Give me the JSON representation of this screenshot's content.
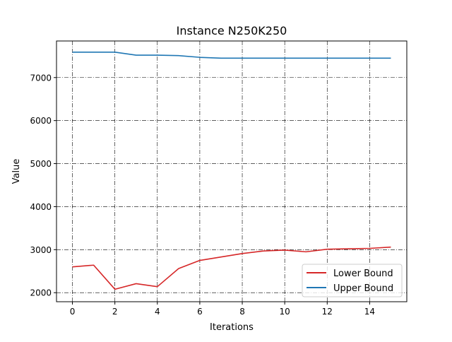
{
  "chart_data": {
    "type": "line",
    "title": "Instance N250K250",
    "xlabel": "Iterations",
    "ylabel": "Value",
    "xlim": [
      -0.75,
      15.75
    ],
    "ylim": [
      1790,
      7850
    ],
    "x_ticks": [
      0,
      2,
      4,
      6,
      8,
      10,
      12,
      14
    ],
    "y_ticks": [
      2000,
      3000,
      4000,
      5000,
      6000,
      7000
    ],
    "grid": true,
    "grid_style": "dash-dot",
    "legend_position": "lower-right",
    "x": [
      0,
      1,
      2,
      3,
      4,
      5,
      6,
      7,
      8,
      9,
      10,
      11,
      12,
      13,
      14,
      15
    ],
    "series": [
      {
        "name": "Lower Bound",
        "color": "#d62728",
        "values": [
          2600,
          2640,
          2080,
          2210,
          2140,
          2560,
          2750,
          2830,
          2910,
          2970,
          2990,
          2950,
          3010,
          3020,
          3030,
          3060
        ]
      },
      {
        "name": "Upper Bound",
        "color": "#1f77b4",
        "values": [
          7590,
          7590,
          7590,
          7520,
          7520,
          7510,
          7470,
          7450,
          7450,
          7450,
          7450,
          7450,
          7450,
          7450,
          7450,
          7450
        ]
      }
    ]
  }
}
